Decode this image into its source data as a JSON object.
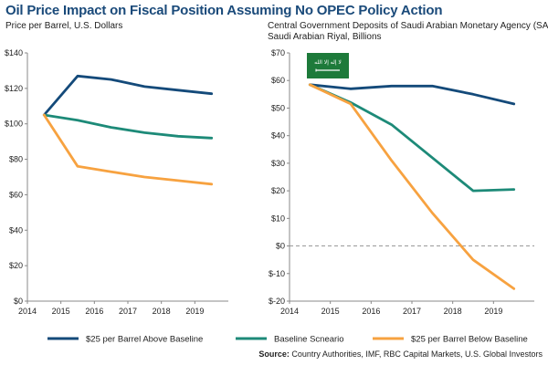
{
  "title": "Oil Price Impact on Fiscal Position Assuming No OPEC Policy Action",
  "source_label": "Source:",
  "source_text": "Country Authorities, IMF, RBC Capital Markets, U.S. Global Investors",
  "colors": {
    "above": "#144a7a",
    "baseline": "#1d8a78",
    "below": "#f7a240",
    "axis": "#888888",
    "zero_line": "#999999"
  },
  "legend": [
    {
      "label": "$25 per Barrel Above Baseline",
      "color_key": "above"
    },
    {
      "label": "Baseline Scneario",
      "color_key": "baseline"
    },
    {
      "label": "$25 per Barrel Below Baseline",
      "color_key": "below"
    }
  ],
  "chart_data": [
    {
      "type": "line",
      "title": "",
      "subtitle": "Price per Barrel, U.S. Dollars",
      "xlabel": "",
      "ylabel": "",
      "xlim": [
        2014,
        2020
      ],
      "ylim": [
        0,
        140
      ],
      "x_ticks": [
        2014,
        2015,
        2016,
        2017,
        2018,
        2019
      ],
      "y_ticks": [
        0,
        20,
        40,
        60,
        80,
        100,
        120,
        140
      ],
      "y_tick_labels": [
        "$0",
        "$20",
        "$40",
        "$60",
        "$80",
        "$100",
        "$120",
        "$140"
      ],
      "x": [
        2014.5,
        2015.5,
        2016.5,
        2017.5,
        2018.5,
        2019.5
      ],
      "series": [
        {
          "name": "$25 per Barrel Above Baseline",
          "color_key": "above",
          "values": [
            105,
            127,
            125,
            121,
            119,
            117
          ]
        },
        {
          "name": "Baseline Scneario",
          "color_key": "baseline",
          "values": [
            105,
            102,
            98,
            95,
            93,
            92
          ]
        },
        {
          "name": "$25 per Barrel Below Baseline",
          "color_key": "below",
          "values": [
            105,
            76,
            73,
            70,
            68,
            66
          ]
        }
      ]
    },
    {
      "type": "line",
      "title": "Central Government Deposits of Saudi Arabian Monetary Agency (SAMA)",
      "subtitle": "Saudi Arabian Riyal, Billions",
      "xlabel": "",
      "ylabel": "",
      "xlim": [
        2014,
        2020
      ],
      "ylim": [
        -20,
        70
      ],
      "x_ticks": [
        2014,
        2015,
        2016,
        2017,
        2018,
        2019
      ],
      "y_ticks": [
        -20,
        -10,
        0,
        10,
        20,
        30,
        40,
        50,
        60,
        70
      ],
      "y_tick_labels": [
        "$-20",
        "$-10",
        "$0",
        "$10",
        "$20",
        "$30",
        "$40",
        "$50",
        "$60",
        "$70"
      ],
      "reference_line": 0,
      "x": [
        2014.5,
        2015.5,
        2016.5,
        2017.5,
        2018.5,
        2019.5
      ],
      "series": [
        {
          "name": "$25 per Barrel Above Baseline",
          "color_key": "above",
          "values": [
            58.5,
            57,
            58,
            58,
            55,
            51.5
          ]
        },
        {
          "name": "Baseline Scneario",
          "color_key": "baseline",
          "values": [
            58.5,
            52,
            44,
            32,
            20,
            20.5
          ]
        },
        {
          "name": "$25 per Barrel Below Baseline",
          "color_key": "below",
          "values": [
            58.5,
            51.5,
            31,
            12,
            -5,
            -15.5
          ]
        }
      ],
      "flag": "saudi-arabia-flag"
    }
  ]
}
